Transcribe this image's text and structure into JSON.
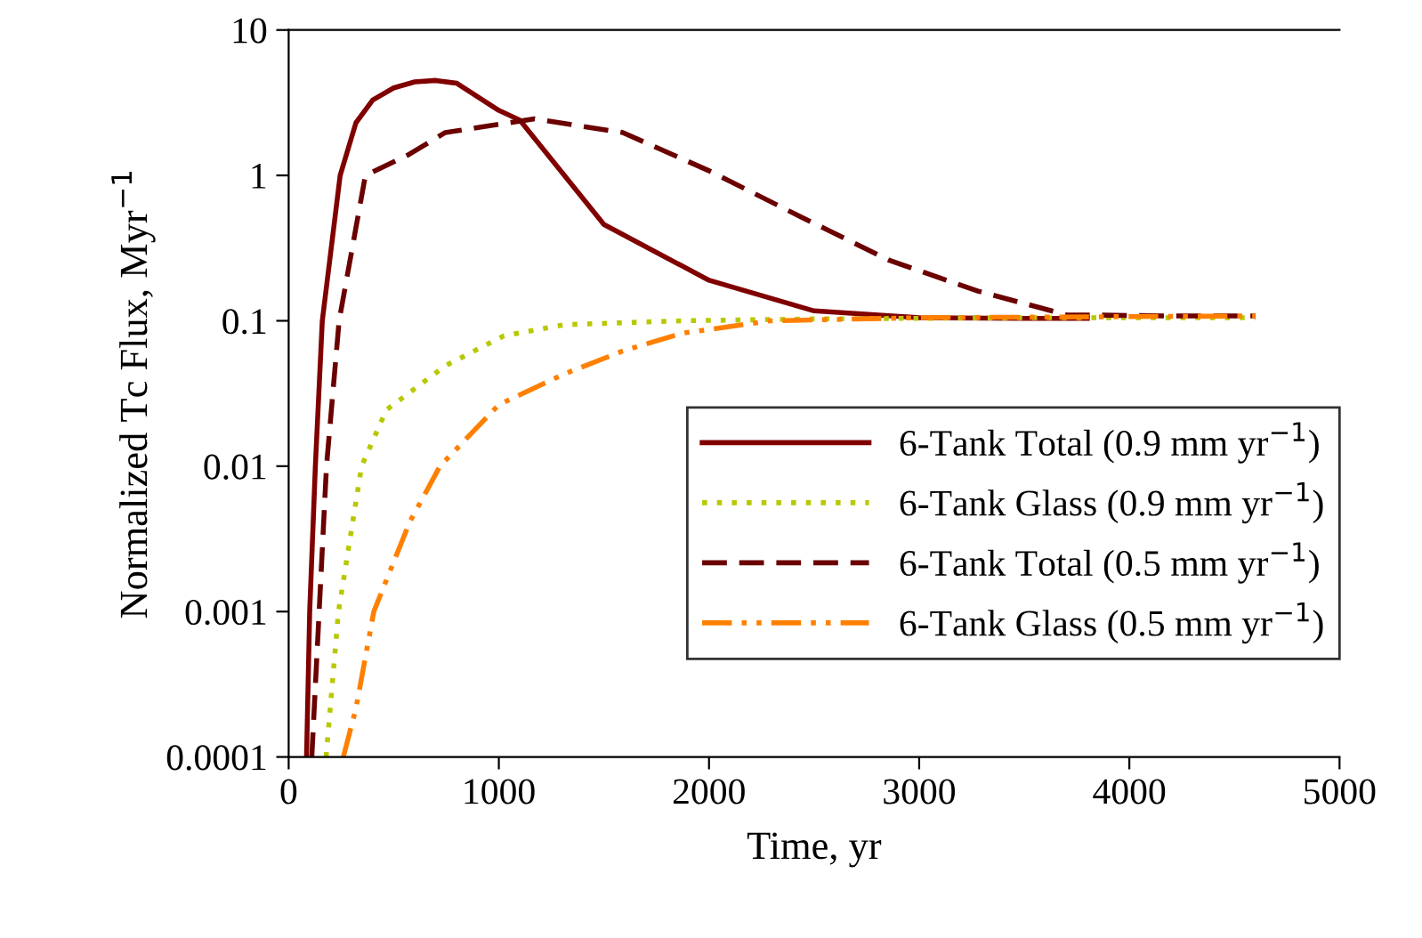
{
  "chart_data": {
    "type": "line",
    "xlabel": "Time, yr",
    "ylabel": "Normalized Tc Flux, Myr$^{−1}$",
    "log": "y",
    "xlim": [
      0,
      5000
    ],
    "xticks": [
      0,
      1000,
      2000,
      3000,
      4000,
      5000
    ],
    "ylim": [
      0.0001,
      10
    ],
    "yticks": [
      0.0001,
      0.001,
      0.01,
      0.1,
      1,
      10
    ],
    "grid": false,
    "legend": "bottom right",
    "marker": "none",
    "series": [
      {
        "name": "6-Tank Total (0.9 mm yr$^{−1}$)",
        "color": "#800000",
        "line_style": "solid",
        "x": [
          85,
          100,
          127,
          160,
          245,
          320,
          400,
          500,
          600,
          700,
          800,
          1000,
          1100,
          1500,
          2000,
          2500,
          3000,
          3500,
          3800
        ],
        "values": [
          0.0001,
          0.001,
          0.01,
          0.1,
          1,
          2.3,
          3.3,
          4.0,
          4.4,
          4.5,
          4.3,
          2.8,
          2.4,
          0.46,
          0.19,
          0.117,
          0.105,
          0.104,
          0.104
        ]
      },
      {
        "name": "6-Tank Glass (0.9 mm yr$^{−1}$)",
        "color": "#b8c800",
        "line_style": "dotted",
        "x": [
          178,
          237,
          347,
          465,
          745,
          1025,
          1310,
          1870,
          2500,
          3500,
          4600
        ],
        "values": [
          0.0001,
          0.001,
          0.01,
          0.0244,
          0.049,
          0.079,
          0.094,
          0.1,
          0.103,
          0.105,
          0.105
        ]
      },
      {
        "name": "6-Tank Total (0.5 mm yr$^{−1}$)",
        "color": "#6b0000",
        "line_style": "dashed",
        "x": [
          110,
          180,
          240,
          365,
          575,
          745,
          1170,
          1590,
          2010,
          2435,
          2860,
          3280,
          3700,
          4200,
          4600
        ],
        "values": [
          0.0001,
          0.01,
          0.1,
          1,
          1.4,
          1.97,
          2.45,
          1.97,
          1.06,
          0.52,
          0.26,
          0.16,
          0.11,
          0.108,
          0.108
        ]
      },
      {
        "name": "6-Tank Glass (0.5 mm yr$^{−1}$)",
        "color": "#ff8000",
        "line_style": "dashdotdot",
        "x": [
          260,
          320,
          405,
          575,
          720,
          1000,
          1310,
          1590,
          1870,
          2290,
          3000,
          4600
        ],
        "values": [
          0.0001,
          0.000215,
          0.001,
          0.0041,
          0.01,
          0.0265,
          0.043,
          0.062,
          0.082,
          0.1,
          0.105,
          0.108
        ]
      }
    ]
  }
}
